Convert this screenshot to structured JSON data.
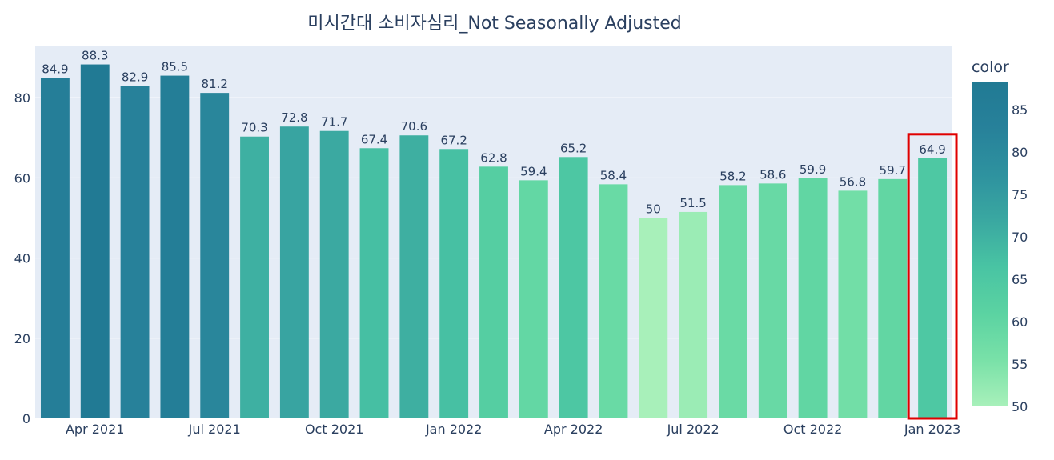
{
  "chart_data": {
    "type": "bar",
    "title": "미시간대 소비자심리_Not Seasonally Adjusted",
    "xlabel": "",
    "ylabel": "",
    "ylim": [
      0,
      93
    ],
    "yticks": [
      0,
      20,
      40,
      60,
      80
    ],
    "x_tick_labels": [
      "Apr 2021",
      "Jul 2021",
      "Oct 2021",
      "Jan 2022",
      "Apr 2022",
      "Jul 2022",
      "Oct 2022",
      "Jan 2023"
    ],
    "x_tick_indices": [
      1,
      4,
      7,
      10,
      13,
      16,
      19,
      22
    ],
    "values": [
      84.9,
      88.3,
      82.9,
      85.5,
      81.2,
      70.3,
      72.8,
      71.7,
      67.4,
      70.6,
      67.2,
      62.8,
      59.4,
      65.2,
      58.4,
      50,
      51.5,
      58.2,
      58.6,
      59.9,
      56.8,
      59.7,
      64.9
    ],
    "highlight_index": 22,
    "highlight_color": "#e00000",
    "grid": true,
    "plot_background": "#e5ecf6",
    "colorbar": {
      "title": "color",
      "ticks": [
        50,
        55,
        60,
        65,
        70,
        75,
        80,
        85
      ],
      "range": [
        50,
        88.3
      ],
      "colorscale": [
        "#a8f0ba",
        "#79e1a8",
        "#5bd3a2",
        "#49c4a3",
        "#3aa8a1",
        "#2e929f",
        "#27819a",
        "#217a94"
      ]
    }
  }
}
